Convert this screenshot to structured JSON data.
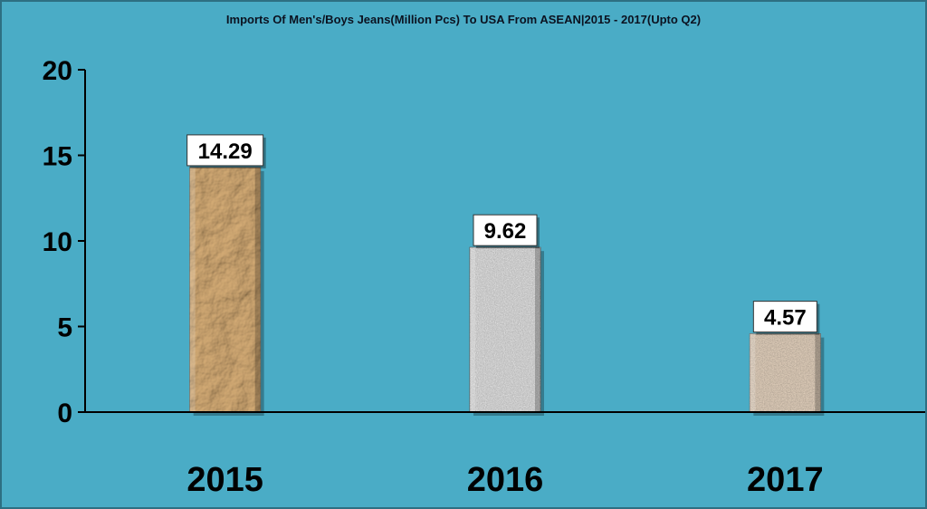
{
  "chart_data": {
    "type": "bar",
    "title": "Imports Of Men's/Boys Jeans(Million Pcs) To USA From ASEAN|2015 - 2017(Upto Q2)",
    "xlabel": "",
    "ylabel": "",
    "categories": [
      "2015",
      "2016",
      "2017"
    ],
    "values": [
      14.29,
      9.62,
      4.57
    ],
    "data_labels": [
      "14.29",
      "9.62",
      "4.57"
    ],
    "yticks": [
      "0",
      "5",
      "10",
      "15",
      "20"
    ],
    "ylim": [
      0,
      20
    ],
    "grid": false,
    "legend": "none",
    "bar_colors": [
      "#c39a60",
      "#b8b8b8",
      "#b3a08c"
    ],
    "background": "#4aacc6"
  }
}
